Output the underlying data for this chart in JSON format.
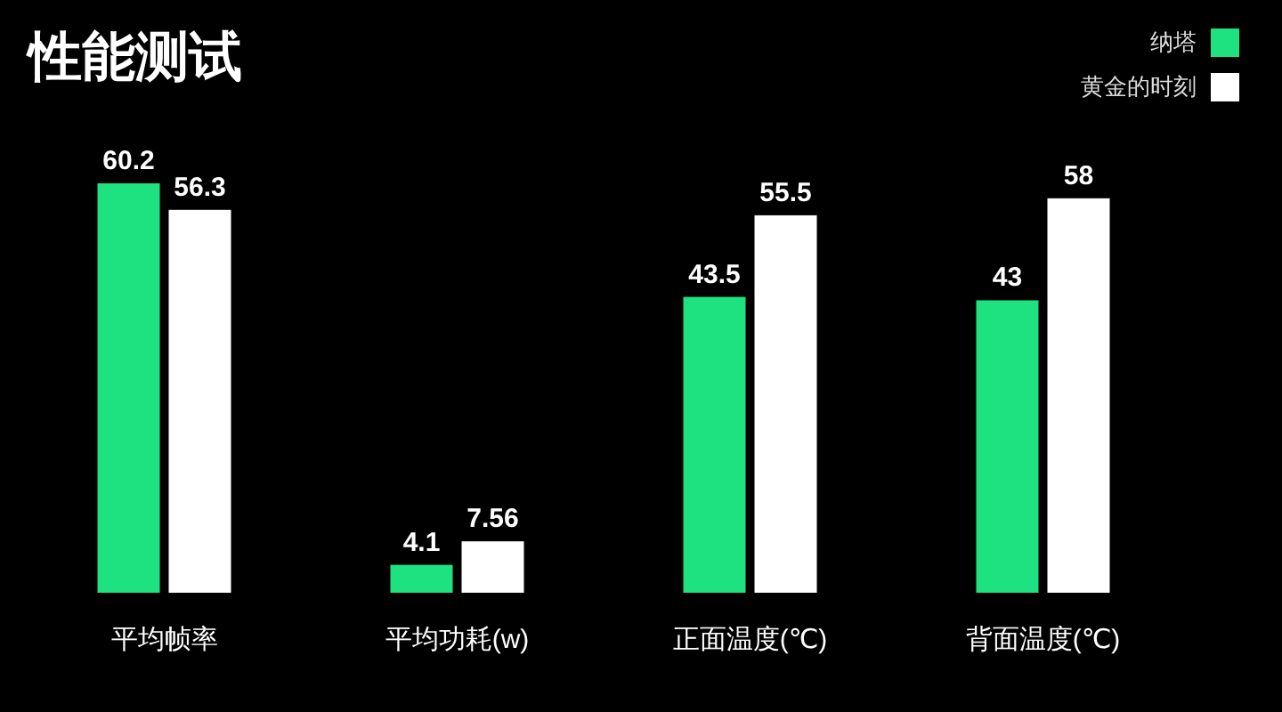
{
  "chart_data": {
    "type": "bar",
    "title": "性能测试",
    "categories": [
      "平均帧率",
      "平均功耗(w)",
      "正面温度(℃)",
      "背面温度(℃)"
    ],
    "series": [
      {
        "name": "纳塔",
        "color": "#1de27f",
        "values": [
          60.2,
          4.1,
          43.5,
          43
        ]
      },
      {
        "name": "黄金的时刻",
        "color": "#ffffff",
        "values": [
          56.3,
          7.56,
          55.5,
          58
        ]
      }
    ],
    "data_labels": true,
    "legend": "top right"
  }
}
